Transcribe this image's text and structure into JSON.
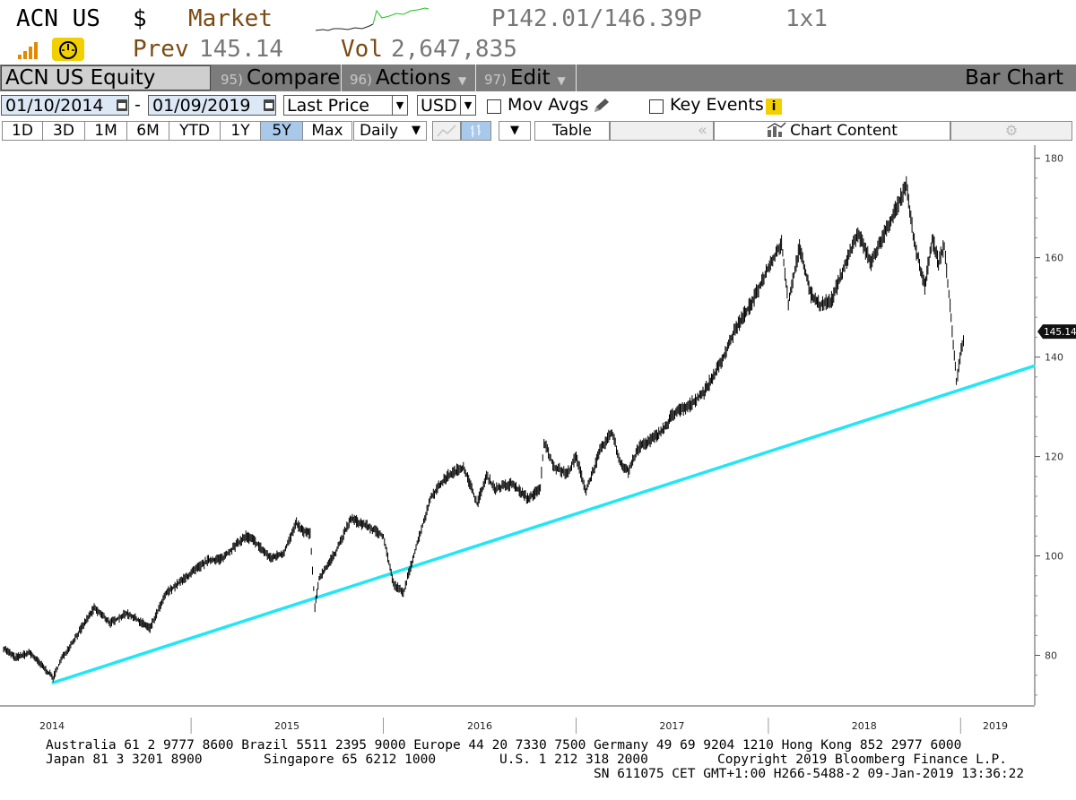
{
  "header": {
    "ticker": "ACN US",
    "currency": "$",
    "market_label": "Market",
    "price_range": "P142.01/146.39P",
    "size": "1x1",
    "prev_label": "Prev",
    "prev_value": "145.14",
    "vol_label": "Vol",
    "vol_value": "2,647,835"
  },
  "toolbar": {
    "security": "ACN US Equity",
    "compare_num": "95)",
    "compare_label": "Compare",
    "actions_num": "96)",
    "actions_label": "Actions",
    "edit_num": "97)",
    "edit_label": "Edit",
    "chart_name": "Bar Chart"
  },
  "settings": {
    "start_date": "01/10/2014",
    "date_sep": "-",
    "end_date": "01/09/2019",
    "field": "Last Price",
    "currency": "USD",
    "mov_avgs": "Mov Avgs",
    "key_events": "Key Events"
  },
  "periods": {
    "buttons": [
      "1D",
      "3D",
      "1M",
      "6M",
      "YTD",
      "1Y",
      "5Y",
      "Max"
    ],
    "selected": "5Y",
    "frequency": "Daily",
    "table_label": "Table",
    "chart_content_label": "Chart Content"
  },
  "chart_data": {
    "type": "line",
    "series_name": "ACN US Equity Last Price",
    "x_unit": "date",
    "y_ticks": [
      80,
      100,
      120,
      140,
      160,
      180
    ],
    "ylim": [
      70,
      183
    ],
    "x_ticks": [
      "2014",
      "2015",
      "2016",
      "2017",
      "2018",
      "2019"
    ],
    "last_price_label": "145.14",
    "line_color": "#000000",
    "trendline_color": "#22e6f5",
    "trendline": [
      {
        "date": "2014-04-14",
        "value": 74.5
      },
      {
        "date": "2019-01-09",
        "value": 137
      }
    ],
    "points": [
      {
        "date": "2014-01-10",
        "value": 81.5
      },
      {
        "date": "2014-02-01",
        "value": 79.5
      },
      {
        "date": "2014-03-01",
        "value": 80.5
      },
      {
        "date": "2014-04-14",
        "value": 75.5
      },
      {
        "date": "2014-05-01",
        "value": 79.5
      },
      {
        "date": "2014-06-01",
        "value": 84.5
      },
      {
        "date": "2014-07-01",
        "value": 89.5
      },
      {
        "date": "2014-08-01",
        "value": 86.5
      },
      {
        "date": "2014-09-01",
        "value": 88.5
      },
      {
        "date": "2014-10-15",
        "value": 85.5
      },
      {
        "date": "2014-11-15",
        "value": 92.5
      },
      {
        "date": "2015-01-01",
        "value": 96.5
      },
      {
        "date": "2015-02-01",
        "value": 99.0
      },
      {
        "date": "2015-03-01",
        "value": 99.5
      },
      {
        "date": "2015-04-15",
        "value": 104.0
      },
      {
        "date": "2015-05-01",
        "value": 103.0
      },
      {
        "date": "2015-06-01",
        "value": 99.5
      },
      {
        "date": "2015-06-25",
        "value": 100.5
      },
      {
        "date": "2015-07-20",
        "value": 106.5
      },
      {
        "date": "2015-08-01",
        "value": 105.0
      },
      {
        "date": "2015-08-15",
        "value": 104.5
      },
      {
        "date": "2015-08-24",
        "value": 89.5
      },
      {
        "date": "2015-09-01",
        "value": 95.5
      },
      {
        "date": "2015-10-01",
        "value": 100.5
      },
      {
        "date": "2015-11-01",
        "value": 107.5
      },
      {
        "date": "2015-12-01",
        "value": 106.0
      },
      {
        "date": "2016-01-01",
        "value": 104.0
      },
      {
        "date": "2016-01-20",
        "value": 94.5
      },
      {
        "date": "2016-02-08",
        "value": 92.5
      },
      {
        "date": "2016-03-01",
        "value": 101.0
      },
      {
        "date": "2016-04-01",
        "value": 112.0
      },
      {
        "date": "2016-05-01",
        "value": 116.0
      },
      {
        "date": "2016-06-01",
        "value": 118.0
      },
      {
        "date": "2016-06-27",
        "value": 110.5
      },
      {
        "date": "2016-07-15",
        "value": 116.0
      },
      {
        "date": "2016-08-01",
        "value": 113.5
      },
      {
        "date": "2016-09-01",
        "value": 114.5
      },
      {
        "date": "2016-10-01",
        "value": 111.5
      },
      {
        "date": "2016-10-25",
        "value": 113.5
      },
      {
        "date": "2016-11-01",
        "value": 123.0
      },
      {
        "date": "2016-11-20",
        "value": 118.0
      },
      {
        "date": "2016-12-15",
        "value": 116.5
      },
      {
        "date": "2017-01-01",
        "value": 120.0
      },
      {
        "date": "2017-01-20",
        "value": 113.0
      },
      {
        "date": "2017-02-15",
        "value": 121.0
      },
      {
        "date": "2017-03-10",
        "value": 125.0
      },
      {
        "date": "2017-03-25",
        "value": 119.0
      },
      {
        "date": "2017-04-10",
        "value": 117.0
      },
      {
        "date": "2017-05-01",
        "value": 122.0
      },
      {
        "date": "2017-06-01",
        "value": 124.0
      },
      {
        "date": "2017-06-25",
        "value": 126.5
      },
      {
        "date": "2017-07-01",
        "value": 128.5
      },
      {
        "date": "2017-08-01",
        "value": 130.0
      },
      {
        "date": "2017-09-01",
        "value": 133.0
      },
      {
        "date": "2017-10-01",
        "value": 138.5
      },
      {
        "date": "2017-11-01",
        "value": 146.0
      },
      {
        "date": "2017-12-01",
        "value": 151.0
      },
      {
        "date": "2018-01-01",
        "value": 158.0
      },
      {
        "date": "2018-01-26",
        "value": 163.0
      },
      {
        "date": "2018-02-08",
        "value": 151.0
      },
      {
        "date": "2018-03-01",
        "value": 162.0
      },
      {
        "date": "2018-03-23",
        "value": 152.5
      },
      {
        "date": "2018-04-10",
        "value": 150.5
      },
      {
        "date": "2018-05-01",
        "value": 151.5
      },
      {
        "date": "2018-06-01",
        "value": 160.0
      },
      {
        "date": "2018-06-20",
        "value": 165.0
      },
      {
        "date": "2018-07-15",
        "value": 159.0
      },
      {
        "date": "2018-08-01",
        "value": 163.0
      },
      {
        "date": "2018-09-01",
        "value": 170.0
      },
      {
        "date": "2018-09-20",
        "value": 174.5
      },
      {
        "date": "2018-10-05",
        "value": 163.0
      },
      {
        "date": "2018-10-25",
        "value": 154.0
      },
      {
        "date": "2018-11-08",
        "value": 164.0
      },
      {
        "date": "2018-11-20",
        "value": 159.0
      },
      {
        "date": "2018-12-01",
        "value": 162.5
      },
      {
        "date": "2018-12-12",
        "value": 150.0
      },
      {
        "date": "2018-12-20",
        "value": 140.5
      },
      {
        "date": "2018-12-24",
        "value": 135.0
      },
      {
        "date": "2018-12-31",
        "value": 140.0
      },
      {
        "date": "2019-01-04",
        "value": 142.5
      },
      {
        "date": "2019-01-09",
        "value": 145.14
      }
    ]
  },
  "footer": {
    "line1": "Australia 61 2 9777 8600 Brazil 5511 2395 9000 Europe 44 20 7330 7500 Germany 49 69 9204 1210 Hong Kong 852 2977 6000",
    "line2_a": "Japan 81 3 3201 8900",
    "line2_b": "Singapore 65 6212 1000",
    "line2_c": "U.S. 1 212 318 2000",
    "line2_d": "Copyright 2019 Bloomberg Finance L.P.",
    "line3": "SN 611075 CET  GMT+1:00 H266-5488-2 09-Jan-2019 13:36:22"
  }
}
